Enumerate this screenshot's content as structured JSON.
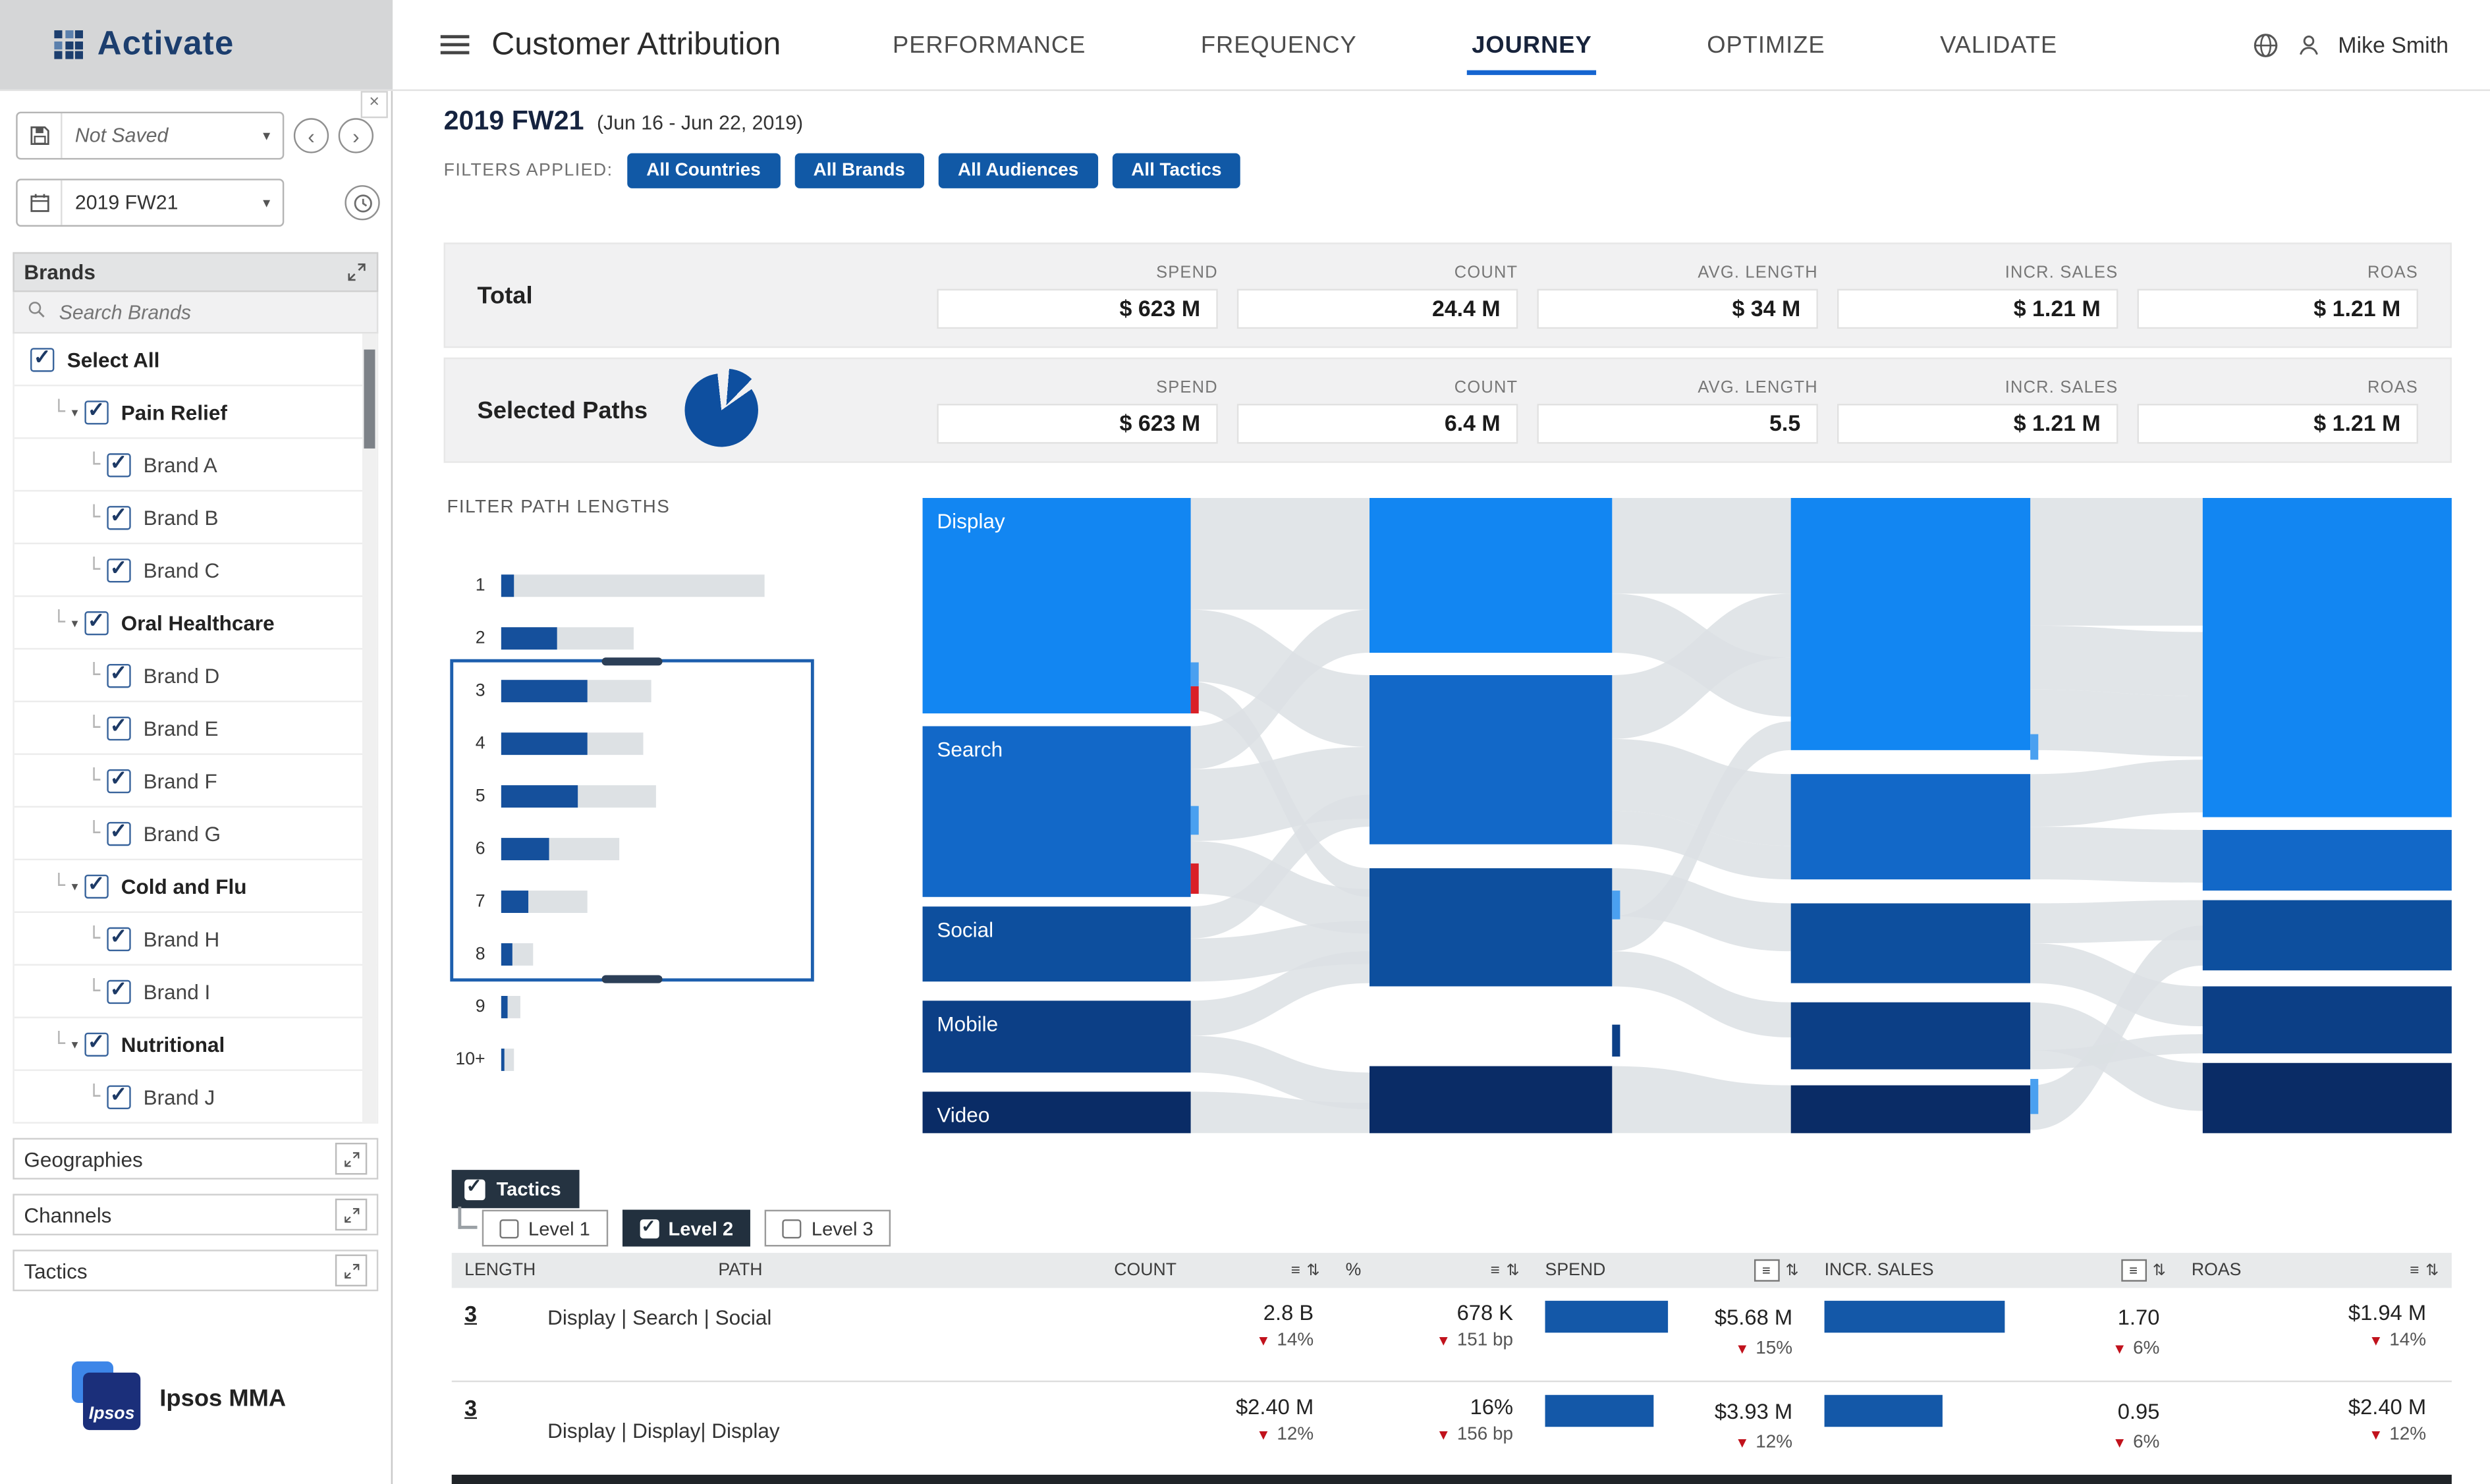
{
  "topbar": {
    "logo_text": "Activate",
    "page_title": "Customer Attribution",
    "tabs": [
      {
        "label": "PERFORMANCE",
        "active": false
      },
      {
        "label": "FREQUENCY",
        "active": false
      },
      {
        "label": "JOURNEY",
        "active": true
      },
      {
        "label": "OPTIMIZE",
        "active": false
      },
      {
        "label": "VALIDATE",
        "active": false
      }
    ],
    "user_name": "Mike Smith"
  },
  "sidebar": {
    "save_selector": {
      "value": "Not Saved"
    },
    "period_selector": {
      "value": "2019 FW21"
    },
    "brands_panel": {
      "title": "Brands",
      "search_placeholder": "Search Brands",
      "select_all_label": "Select All",
      "groups": [
        {
          "label": "Pain Relief",
          "checked": true,
          "children": [
            "Brand A",
            "Brand B",
            "Brand C"
          ]
        },
        {
          "label": "Oral Healthcare",
          "checked": true,
          "children": [
            "Brand D",
            "Brand E",
            "Brand F",
            "Brand G"
          ]
        },
        {
          "label": "Cold and Flu",
          "checked": true,
          "children": [
            "Brand H",
            "Brand I"
          ]
        },
        {
          "label": "Nutritional",
          "checked": true,
          "children": [
            "Brand J"
          ]
        }
      ]
    },
    "panels": [
      "Geographies",
      "Channels",
      "Tactics"
    ],
    "footer_logo": {
      "square_text": "Ipsos",
      "label": "Ipsos MMA"
    }
  },
  "main": {
    "heading": {
      "title": "2019 FW21",
      "subtitle": "(Jun 16 - Jun 22, 2019)"
    },
    "filters": {
      "label": "FILTERS APPLIED:",
      "chips": [
        "All Countries",
        "All Brands",
        "All Audiences",
        "All Tactics"
      ]
    },
    "summary": {
      "columns": [
        "SPEND",
        "COUNT",
        "AVG. LENGTH",
        "INCR. SALES",
        "ROAS"
      ],
      "rows": [
        {
          "label": "Total",
          "has_pie": false,
          "values": [
            "$ 623 M",
            "24.4 M",
            "$ 34 M",
            "$ 1.21 M",
            "$ 1.21 M"
          ]
        },
        {
          "label": "Selected Paths",
          "has_pie": true,
          "values": [
            "$ 623 M",
            "6.4 M",
            "5.5",
            "$ 1.21 M",
            "$ 1.21 M"
          ]
        }
      ]
    },
    "path_filter": {
      "title": "FILTER PATH LENGTHS"
    },
    "tactics_controls": {
      "tactics_label": "Tactics",
      "tactics_checked": true,
      "levels": [
        {
          "label": "Level 1",
          "checked": false
        },
        {
          "label": "Level 2",
          "checked": true
        },
        {
          "label": "Level 3",
          "checked": false
        }
      ]
    },
    "table": {
      "headers": [
        "LENGTH",
        "PATH",
        "COUNT",
        "%",
        "SPEND",
        "INCR. SALES",
        "ROAS"
      ],
      "rows": [
        {
          "length": "3",
          "path": "Display | Search | Social",
          "count": "2.8 B",
          "count_delta": "14%",
          "pct": "678 K",
          "pct_delta": "151 bp",
          "spend": "$5.68 M",
          "spend_delta": "15%",
          "spend_bar": 0.45,
          "incr_sales": "1.70",
          "incr_delta": "6%",
          "incr_bar": 0.55,
          "roas": "$1.94 M",
          "roas_delta": "14%"
        },
        {
          "length": "3",
          "path": "Display | Display| Display",
          "count": "$2.40 M",
          "count_delta": "12%",
          "pct": "16%",
          "pct_delta": "156 bp",
          "spend": "$3.93 M",
          "spend_delta": "12%",
          "spend_bar": 0.4,
          "incr_sales": "0.95",
          "incr_delta": "6%",
          "incr_bar": 0.36,
          "roas": "$2.40 M",
          "roas_delta": "12%"
        }
      ]
    }
  },
  "colors": {
    "accent_blue": "#1159a6",
    "bar_blue": "#1458a8",
    "delta_red": "#c1121c",
    "sankey_palette": [
      "#1286f2",
      "#1268c8",
      "#0d4f9e",
      "#0c3f86",
      "#0a2c66"
    ],
    "ribbon_gray": "#dce0e4"
  },
  "chart_data": [
    {
      "type": "bar",
      "title": "FILTER PATH LENGTHS",
      "orientation": "horizontal",
      "categories": [
        "1",
        "2",
        "3",
        "4",
        "5",
        "6",
        "7",
        "8",
        "9",
        "10+"
      ],
      "series": [
        {
          "name": "selected",
          "values": [
            5,
            21,
            33,
            33,
            29,
            18,
            10,
            4,
            2.5,
            1.5
          ]
        },
        {
          "name": "total",
          "values": [
            100,
            50,
            57,
            54,
            59,
            45,
            33,
            12,
            7,
            5
          ]
        }
      ],
      "selection_range": [
        "3",
        "8"
      ],
      "xlabel": "",
      "ylabel": "path length",
      "legend": "off",
      "grid": "off"
    },
    {
      "type": "sankey",
      "columns": [
        {
          "nodes": [
            {
              "label": "Display",
              "size": 135
            },
            {
              "label": "Search",
              "size": 107
            },
            {
              "label": "Social",
              "size": 47
            },
            {
              "label": "Mobile",
              "size": 45
            },
            {
              "label": "Video",
              "size": 26
            }
          ]
        },
        {
          "nodes": [
            {
              "label": "",
              "size": 97
            },
            {
              "label": "",
              "size": 106
            },
            {
              "label": "",
              "size": 74
            },
            {
              "label": "",
              "size": 42
            }
          ]
        },
        {
          "nodes": [
            {
              "label": "",
              "size": 158
            },
            {
              "label": "",
              "size": 66
            },
            {
              "label": "",
              "size": 50
            },
            {
              "label": "",
              "size": 42
            },
            {
              "label": "",
              "size": 30
            }
          ]
        },
        {
          "nodes": [
            {
              "label": "",
              "size": 200
            },
            {
              "label": "",
              "size": 38
            },
            {
              "label": "",
              "size": 44
            },
            {
              "label": "",
              "size": 42
            },
            {
              "label": "",
              "size": 44
            }
          ]
        }
      ]
    },
    {
      "type": "pie",
      "name": "selected-paths-share",
      "values": [
        {
          "label": "selected",
          "value": 88
        },
        {
          "label": "other",
          "value": 12
        }
      ]
    }
  ]
}
